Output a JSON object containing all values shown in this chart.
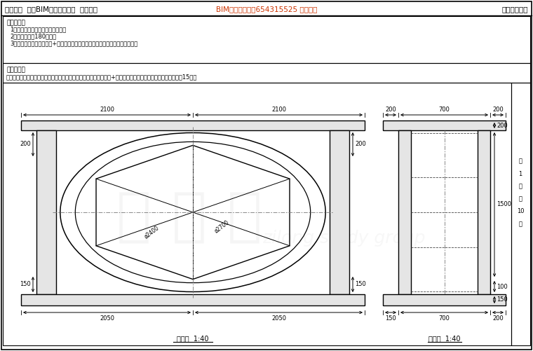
{
  "title_left": "第十四期  全国BIM技能等级考试  一级试题",
  "title_mid": "BIM考试交流群：654315525 欢迎大家",
  "title_right": "中国图学学会",
  "bg_color": "#ffffff",
  "line_color": "#000000",
  "exam_requirements_title": "考试要求：",
  "exam_req_1": "1．考试方式：计算机操作，闭卷；",
  "exam_req_2": "2．考试时间为180分钟；",
  "exam_req_3": "3．新建文件夹（以准考号+姓名命名），用于存放本次考试中生成的全部文件。",
  "section_title": "试题部分：",
  "question_1": "一、根据给定尺寸建立六边形门洞模型，请将模型文件以六边形门洞+考生姓名为文件名保存到考生文件夹中。（15分）",
  "front_view_label": "主视图  1:40",
  "side_view_label": "侧视图  1:40",
  "front_dims_top": [
    "2100",
    "2100"
  ],
  "front_dims_bottom": [
    "2050",
    "2050"
  ],
  "front_dim_side": "200",
  "front_dim_bottom_side": "150",
  "front_circle_label_inner": "ø2400",
  "front_circle_label_outer": "ø2700",
  "side_dims_top": [
    "200",
    "700",
    "200"
  ],
  "side_dims_bottom": [
    "150",
    "700",
    "200"
  ],
  "side_dim_right_1": "200",
  "side_dim_right_2": "1500",
  "side_dim_right_3": "100",
  "side_dim_right_4": "150"
}
